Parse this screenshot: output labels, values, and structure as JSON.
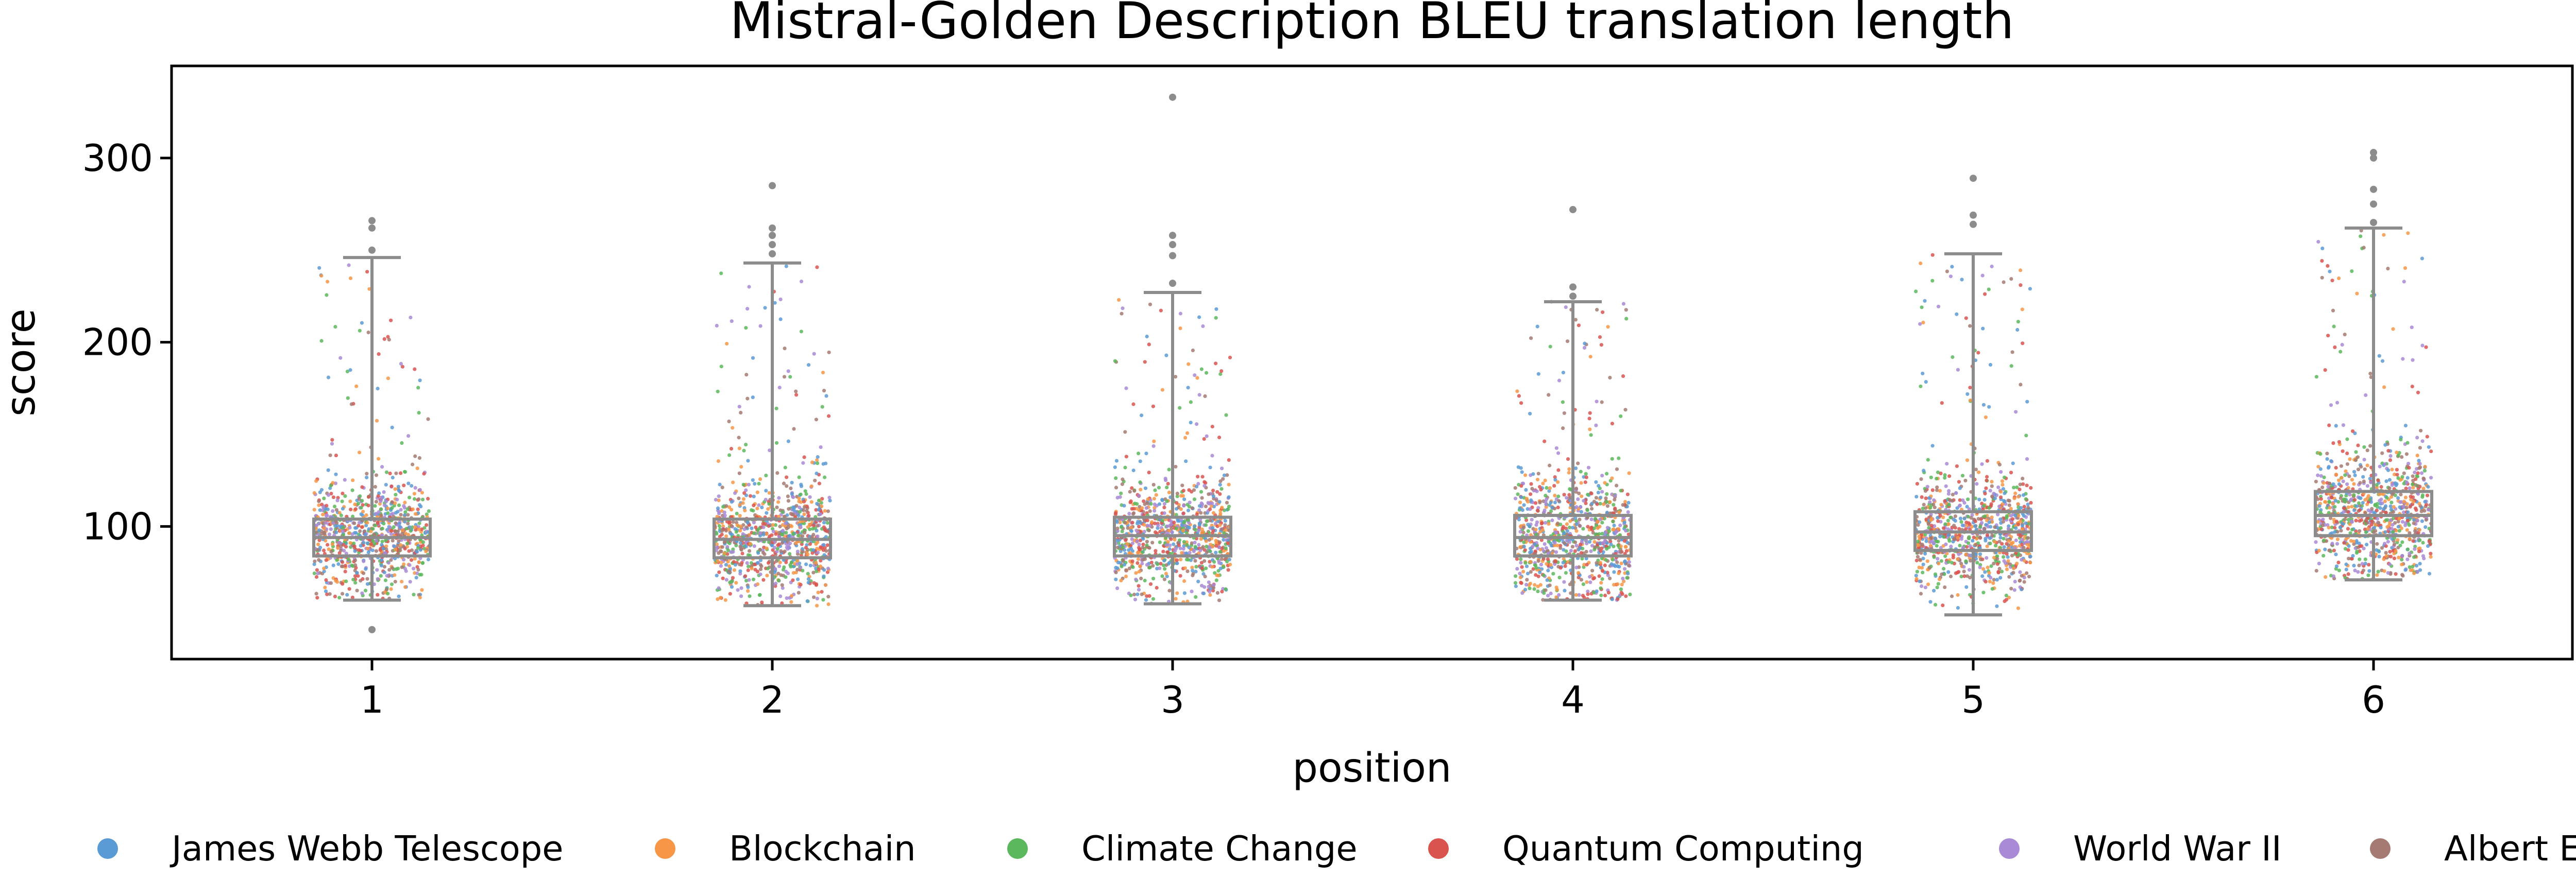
{
  "chart_data": {
    "type": "box",
    "title": "Mistral-Golden Description BLEU translation length",
    "xlabel": "position",
    "ylabel": "score",
    "categories": [
      "1",
      "2",
      "3",
      "4",
      "5",
      "6"
    ],
    "ylim": [
      28,
      350
    ],
    "yticks": [
      100,
      200,
      300
    ],
    "grid": false,
    "legend_position": "bottom",
    "series_colors": [
      "#5b9bd5",
      "#f79646",
      "#5cb85c",
      "#d9534f",
      "#a98ad6",
      "#a57a72"
    ],
    "series": [
      {
        "name": "James Webb Telescope"
      },
      {
        "name": "Blockchain"
      },
      {
        "name": "Climate Change"
      },
      {
        "name": "Quantum Computing"
      },
      {
        "name": "World War II"
      },
      {
        "name": "Albert Einstein"
      }
    ],
    "boxes": [
      {
        "category": "1",
        "whisker_low": 60,
        "q1": 84,
        "median": 94,
        "q3": 104,
        "whisker_high": 246,
        "outliers": [
          44,
          250,
          262,
          266
        ]
      },
      {
        "category": "2",
        "whisker_low": 57,
        "q1": 83,
        "median": 93,
        "q3": 104,
        "whisker_high": 243,
        "outliers": [
          248,
          253,
          258,
          262,
          285
        ]
      },
      {
        "category": "3",
        "whisker_low": 58,
        "q1": 84,
        "median": 95,
        "q3": 105,
        "whisker_high": 227,
        "outliers": [
          232,
          247,
          253,
          258,
          333
        ]
      },
      {
        "category": "4",
        "whisker_low": 60,
        "q1": 84,
        "median": 94,
        "q3": 106,
        "whisker_high": 222,
        "outliers": [
          225,
          230,
          272
        ]
      },
      {
        "category": "5",
        "whisker_low": 52,
        "q1": 87,
        "median": 97,
        "q3": 108,
        "whisker_high": 248,
        "outliers": [
          264,
          269,
          289
        ]
      },
      {
        "category": "6",
        "whisker_low": 71,
        "q1": 95,
        "median": 106,
        "q3": 119,
        "whisker_high": 262,
        "outliers": [
          265,
          275,
          283,
          300,
          303
        ]
      }
    ]
  }
}
